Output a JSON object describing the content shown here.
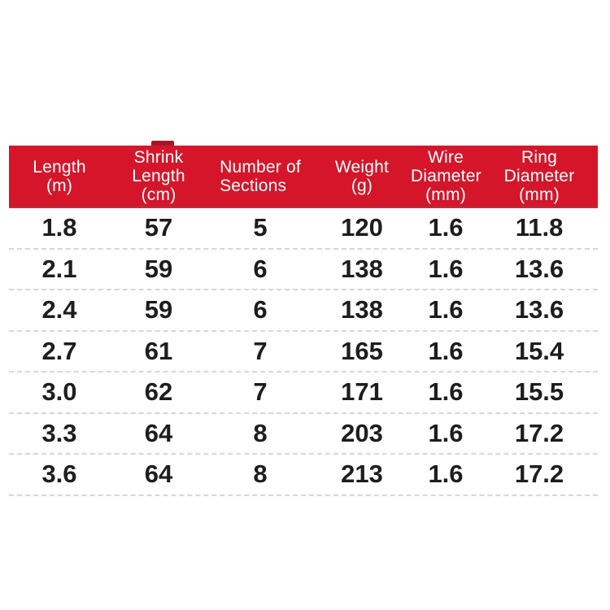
{
  "page": {
    "background": "#ffffff"
  },
  "chart_data": {
    "type": "table",
    "title": "",
    "header_bg": "#d5162a",
    "header_text_color": "#ffffff",
    "body_text_color": "#1d1d1d",
    "separator_color": "#d8d8d5",
    "columns": [
      {
        "id": "length-m",
        "label": "Length (m)",
        "lines": [
          "Length",
          "(m)"
        ]
      },
      {
        "id": "shrink-length-cm",
        "label": "Shrink Length (cm)",
        "lines": [
          "Shrink",
          "Length",
          "(cm)"
        ]
      },
      {
        "id": "number-of-sections",
        "label": "Number of Sections",
        "lines": [
          "Number of",
          "Sections"
        ]
      },
      {
        "id": "weight-g",
        "label": "Weight (g)",
        "lines": [
          "Weight",
          "(g)"
        ]
      },
      {
        "id": "wire-diameter-mm",
        "label": "Wire Diameter (mm)",
        "lines": [
          "Wire",
          "Diameter",
          "(mm)"
        ]
      },
      {
        "id": "ring-diameter-mm",
        "label": "Ring Diameter (mm)",
        "lines": [
          "Ring",
          "Diameter",
          "(mm)"
        ]
      }
    ],
    "rows": [
      [
        "1.8",
        "57",
        "5",
        "120",
        "1.6",
        "11.8"
      ],
      [
        "2.1",
        "59",
        "6",
        "138",
        "1.6",
        "13.6"
      ],
      [
        "2.4",
        "59",
        "6",
        "138",
        "1.6",
        "13.6"
      ],
      [
        "2.7",
        "61",
        "7",
        "165",
        "1.6",
        "15.4"
      ],
      [
        "3.0",
        "62",
        "7",
        "171",
        "1.6",
        "15.5"
      ],
      [
        "3.3",
        "64",
        "8",
        "203",
        "1.6",
        "17.2"
      ],
      [
        "3.6",
        "64",
        "8",
        "213",
        "1.6",
        "17.2"
      ]
    ]
  }
}
